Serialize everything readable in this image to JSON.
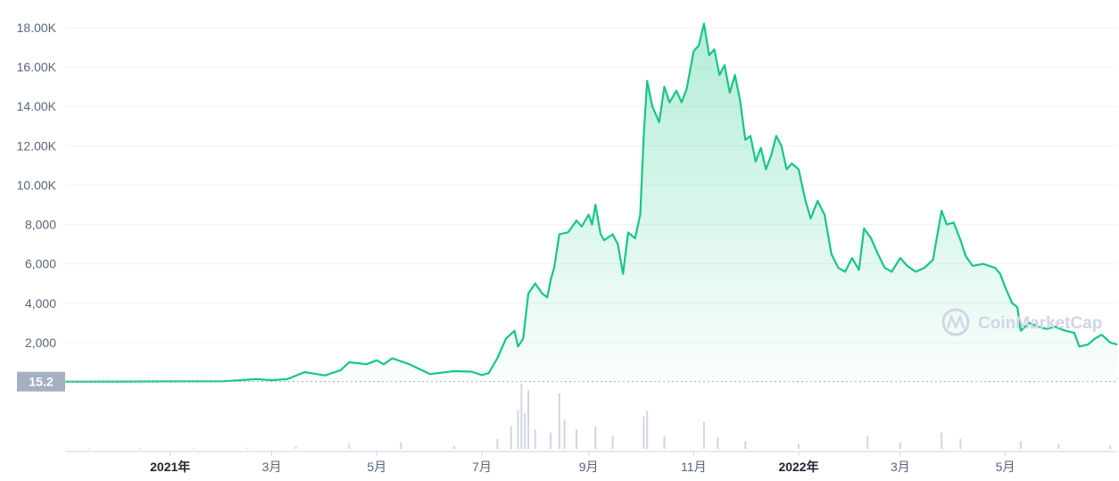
{
  "chart_data": {
    "type": "area",
    "y_ticks": [
      "2,000",
      "4,000",
      "6,000",
      "8,000",
      "10.00K",
      "12.00K",
      "14.00K",
      "16.00K",
      "18.00K"
    ],
    "y_tick_values": [
      2000,
      4000,
      6000,
      8000,
      10000,
      12000,
      14000,
      16000,
      18000
    ],
    "ylim": [
      0,
      18500
    ],
    "baseline_label": "15.2",
    "x_ticks": [
      {
        "label": "2021年",
        "date": "2021-01-01",
        "bold": true
      },
      {
        "label": "3月",
        "date": "2021-03-01",
        "bold": false
      },
      {
        "label": "5月",
        "date": "2021-05-01",
        "bold": false
      },
      {
        "label": "7月",
        "date": "2021-07-01",
        "bold": false
      },
      {
        "label": "9月",
        "date": "2021-09-01",
        "bold": false
      },
      {
        "label": "11月",
        "date": "2021-11-01",
        "bold": false
      },
      {
        "label": "2022年",
        "date": "2022-01-01",
        "bold": true
      },
      {
        "label": "3月",
        "date": "2022-03-01",
        "bold": false
      },
      {
        "label": "5月",
        "date": "2022-05-01",
        "bold": false
      }
    ],
    "xlim": [
      "2020-11-01",
      "2022-07-05"
    ],
    "series": [
      {
        "color": "#16c784",
        "points": [
          [
            "2020-11-01",
            15.2
          ],
          [
            "2020-12-01",
            20
          ],
          [
            "2021-01-01",
            25
          ],
          [
            "2021-02-01",
            30
          ],
          [
            "2021-02-20",
            140
          ],
          [
            "2021-03-01",
            90
          ],
          [
            "2021-03-10",
            140
          ],
          [
            "2021-03-20",
            500
          ],
          [
            "2021-04-01",
            330
          ],
          [
            "2021-04-10",
            600
          ],
          [
            "2021-04-15",
            1000
          ],
          [
            "2021-04-25",
            900
          ],
          [
            "2021-05-01",
            1100
          ],
          [
            "2021-05-05",
            900
          ],
          [
            "2021-05-10",
            1200
          ],
          [
            "2021-05-20",
            900
          ],
          [
            "2021-06-01",
            400
          ],
          [
            "2021-06-15",
            550
          ],
          [
            "2021-06-25",
            520
          ],
          [
            "2021-07-01",
            350
          ],
          [
            "2021-07-05",
            450
          ],
          [
            "2021-07-10",
            1200
          ],
          [
            "2021-07-15",
            2200
          ],
          [
            "2021-07-20",
            2600
          ],
          [
            "2021-07-22",
            1800
          ],
          [
            "2021-07-25",
            2200
          ],
          [
            "2021-07-28",
            4500
          ],
          [
            "2021-08-01",
            5000
          ],
          [
            "2021-08-05",
            4500
          ],
          [
            "2021-08-08",
            4300
          ],
          [
            "2021-08-10",
            5200
          ],
          [
            "2021-08-12",
            5800
          ],
          [
            "2021-08-15",
            7500
          ],
          [
            "2021-08-20",
            7600
          ],
          [
            "2021-08-25",
            8200
          ],
          [
            "2021-08-28",
            7900
          ],
          [
            "2021-09-01",
            8500
          ],
          [
            "2021-09-03",
            8000
          ],
          [
            "2021-09-05",
            9000
          ],
          [
            "2021-09-08",
            7500
          ],
          [
            "2021-09-10",
            7200
          ],
          [
            "2021-09-15",
            7500
          ],
          [
            "2021-09-18",
            7000
          ],
          [
            "2021-09-21",
            5500
          ],
          [
            "2021-09-24",
            7600
          ],
          [
            "2021-09-28",
            7300
          ],
          [
            "2021-10-01",
            8500
          ],
          [
            "2021-10-03",
            12500
          ],
          [
            "2021-10-05",
            15300
          ],
          [
            "2021-10-08",
            14000
          ],
          [
            "2021-10-12",
            13200
          ],
          [
            "2021-10-15",
            15000
          ],
          [
            "2021-10-18",
            14200
          ],
          [
            "2021-10-22",
            14800
          ],
          [
            "2021-10-25",
            14200
          ],
          [
            "2021-10-28",
            14900
          ],
          [
            "2021-11-01",
            16800
          ],
          [
            "2021-11-04",
            17100
          ],
          [
            "2021-11-07",
            18200
          ],
          [
            "2021-11-10",
            16600
          ],
          [
            "2021-11-13",
            16900
          ],
          [
            "2021-11-16",
            15600
          ],
          [
            "2021-11-19",
            16100
          ],
          [
            "2021-11-22",
            14700
          ],
          [
            "2021-11-25",
            15600
          ],
          [
            "2021-11-28",
            14300
          ],
          [
            "2021-12-01",
            12300
          ],
          [
            "2021-12-04",
            12500
          ],
          [
            "2021-12-07",
            11200
          ],
          [
            "2021-12-10",
            11900
          ],
          [
            "2021-12-13",
            10800
          ],
          [
            "2021-12-16",
            11500
          ],
          [
            "2021-12-19",
            12500
          ],
          [
            "2021-12-22",
            12000
          ],
          [
            "2021-12-25",
            10800
          ],
          [
            "2021-12-28",
            11100
          ],
          [
            "2022-01-01",
            10800
          ],
          [
            "2022-01-05",
            9200
          ],
          [
            "2022-01-08",
            8300
          ],
          [
            "2022-01-12",
            9200
          ],
          [
            "2022-01-16",
            8500
          ],
          [
            "2022-01-20",
            6500
          ],
          [
            "2022-01-24",
            5800
          ],
          [
            "2022-01-28",
            5600
          ],
          [
            "2022-02-01",
            6300
          ],
          [
            "2022-02-05",
            5700
          ],
          [
            "2022-02-08",
            7800
          ],
          [
            "2022-02-12",
            7300
          ],
          [
            "2022-02-16",
            6500
          ],
          [
            "2022-02-20",
            5800
          ],
          [
            "2022-02-24",
            5600
          ],
          [
            "2022-03-01",
            6300
          ],
          [
            "2022-03-05",
            5900
          ],
          [
            "2022-03-10",
            5600
          ],
          [
            "2022-03-15",
            5800
          ],
          [
            "2022-03-20",
            6200
          ],
          [
            "2022-03-25",
            8700
          ],
          [
            "2022-03-28",
            8000
          ],
          [
            "2022-04-01",
            8100
          ],
          [
            "2022-04-05",
            7200
          ],
          [
            "2022-04-08",
            6400
          ],
          [
            "2022-04-12",
            5900
          ],
          [
            "2022-04-18",
            6000
          ],
          [
            "2022-04-25",
            5800
          ],
          [
            "2022-04-28",
            5500
          ],
          [
            "2022-05-01",
            4800
          ],
          [
            "2022-05-05",
            4000
          ],
          [
            "2022-05-08",
            3800
          ],
          [
            "2022-05-10",
            2600
          ],
          [
            "2022-05-15",
            3000
          ],
          [
            "2022-05-20",
            2800
          ],
          [
            "2022-05-25",
            2700
          ],
          [
            "2022-05-30",
            2800
          ],
          [
            "2022-06-05",
            2600
          ],
          [
            "2022-06-10",
            2500
          ],
          [
            "2022-06-13",
            1800
          ],
          [
            "2022-06-18",
            1900
          ],
          [
            "2022-06-22",
            2200
          ],
          [
            "2022-06-26",
            2400
          ],
          [
            "2022-07-01",
            2000
          ],
          [
            "2022-07-05",
            1900
          ]
        ]
      }
    ],
    "volume_series": [
      [
        "2020-11-15",
        1
      ],
      [
        "2020-12-15",
        1
      ],
      [
        "2021-01-15",
        1
      ],
      [
        "2021-02-15",
        2
      ],
      [
        "2021-03-15",
        4
      ],
      [
        "2021-04-15",
        8
      ],
      [
        "2021-05-15",
        10
      ],
      [
        "2021-06-15",
        4
      ],
      [
        "2021-07-10",
        15
      ],
      [
        "2021-07-18",
        35
      ],
      [
        "2021-07-22",
        60
      ],
      [
        "2021-07-24",
        100
      ],
      [
        "2021-07-26",
        55
      ],
      [
        "2021-07-28",
        90
      ],
      [
        "2021-08-01",
        30
      ],
      [
        "2021-08-10",
        25
      ],
      [
        "2021-08-15",
        85
      ],
      [
        "2021-08-18",
        45
      ],
      [
        "2021-08-25",
        30
      ],
      [
        "2021-09-05",
        35
      ],
      [
        "2021-09-15",
        20
      ],
      [
        "2021-10-03",
        50
      ],
      [
        "2021-10-05",
        58
      ],
      [
        "2021-10-15",
        20
      ],
      [
        "2021-11-07",
        42
      ],
      [
        "2021-11-15",
        18
      ],
      [
        "2021-12-01",
        12
      ],
      [
        "2022-01-01",
        8
      ],
      [
        "2022-02-10",
        20
      ],
      [
        "2022-03-01",
        10
      ],
      [
        "2022-03-25",
        25
      ],
      [
        "2022-04-05",
        15
      ],
      [
        "2022-05-10",
        12
      ],
      [
        "2022-06-01",
        8
      ],
      [
        "2022-07-01",
        5
      ]
    ]
  },
  "watermark": {
    "text": "CoinMarketCap"
  },
  "colors": {
    "line": "#16c784",
    "fill_top": "#16c784",
    "volume": "#cfd6e4",
    "grid": "#eff2f5",
    "baseline_badge": "#a6b0c3"
  }
}
